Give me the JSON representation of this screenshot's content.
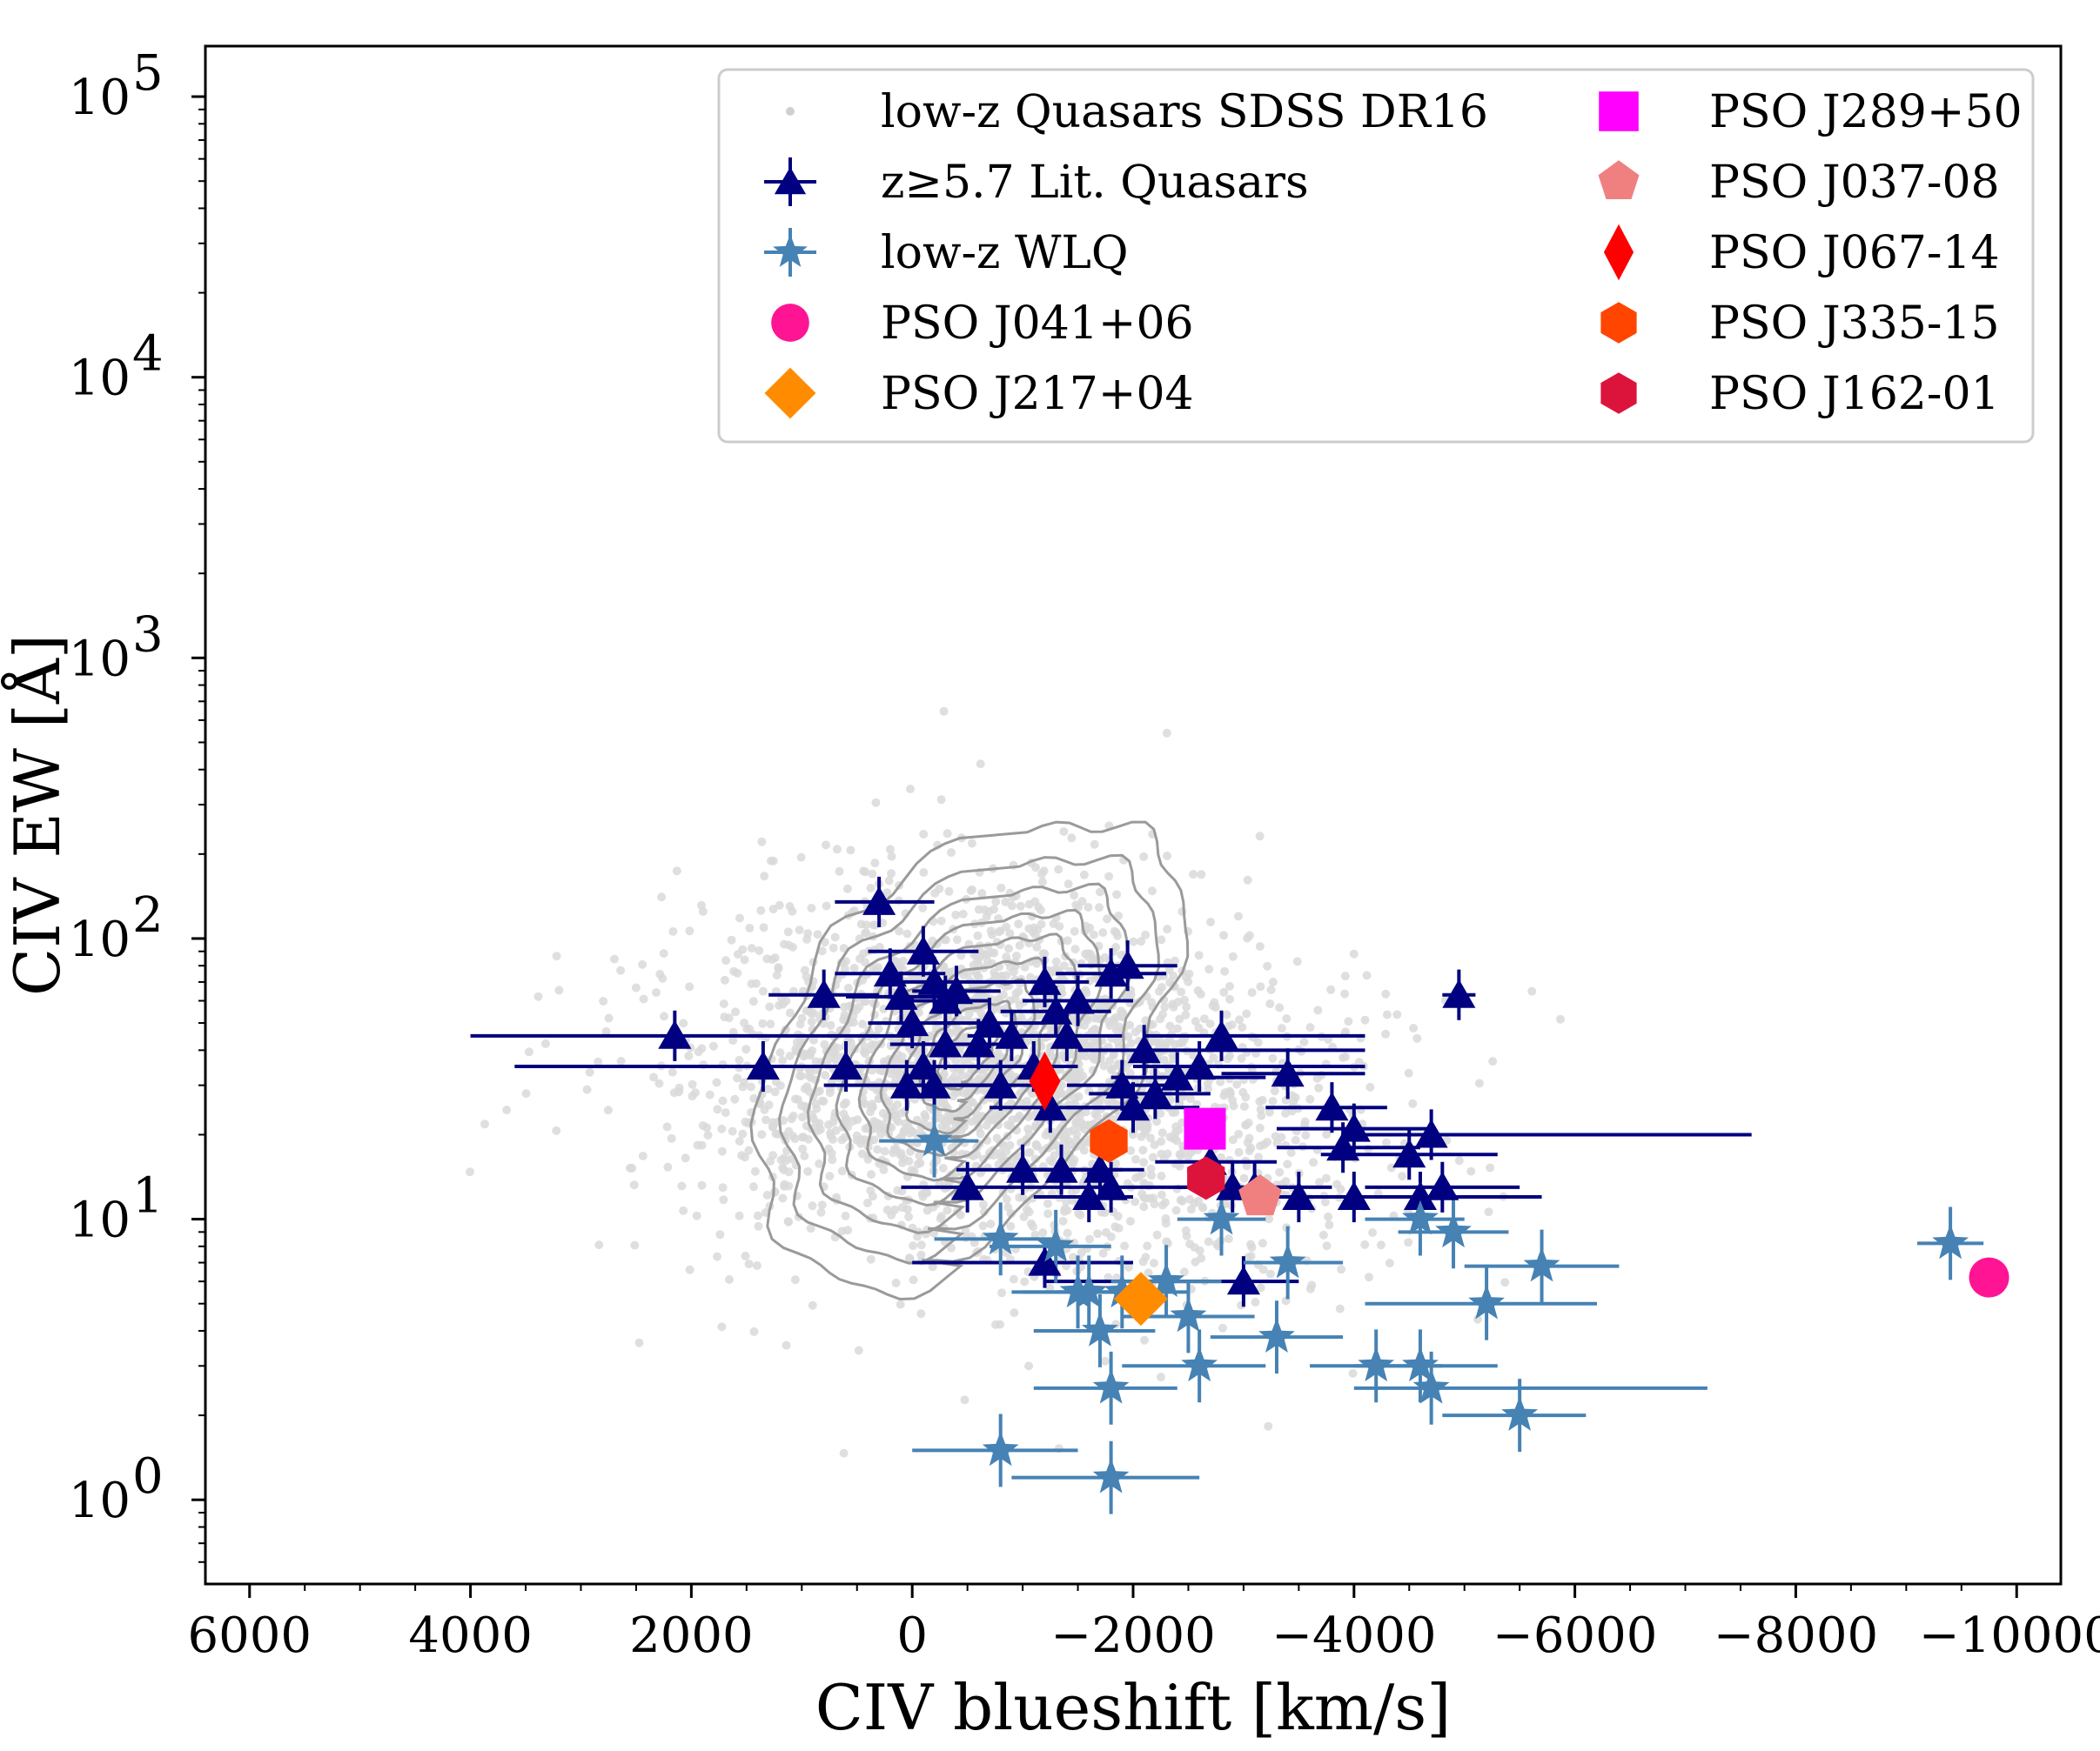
{
  "chart_data": {
    "type": "scatter",
    "title": "",
    "xlabel": "CIV blueshift [km/s]",
    "ylabel": "CIV EW [Å]",
    "xlim": [
      6400,
      -10400
    ],
    "ylim_log10": [
      -0.3,
      5.18
    ],
    "yscale": "log",
    "x_ticks": [
      6000,
      4000,
      2000,
      0,
      -2000,
      -4000,
      -6000,
      -8000,
      -10000
    ],
    "x_tick_labels": [
      "6000",
      "4000",
      "2000",
      "0",
      "−2000",
      "−4000",
      "−6000",
      "−8000",
      "−10000"
    ],
    "y_tick_exponents": [
      0,
      1,
      2,
      3,
      4,
      5
    ],
    "y_tick_base": "10",
    "legend_position": "upper-right",
    "colors": {
      "background_points": "#d9d9d9",
      "contour": "#9a9a9a",
      "lit_quasars": "#000080",
      "wlq": "#4682b4",
      "J041": "#ff1493",
      "J217": "#ff8c00",
      "J289": "#ff00ff",
      "J037": "#f08080",
      "J067": "#ff0000",
      "J335": "#ff4500",
      "J162": "#dc143c"
    },
    "legend": [
      {
        "label": "low-z Quasars SDSS DR16",
        "marker": "dot",
        "color": "#d0d0d0"
      },
      {
        "label": "z≥5.7 Lit. Quasars",
        "marker": "triangle",
        "color": "#000080"
      },
      {
        "label": "low-z WLQ",
        "marker": "star",
        "color": "#4682b4"
      },
      {
        "label": "PSO J041+06",
        "marker": "circle",
        "color": "#ff1493"
      },
      {
        "label": "PSO J217+04",
        "marker": "diamond",
        "color": "#ff8c00"
      },
      {
        "label": "PSO J289+50",
        "marker": "square",
        "color": "#ff00ff"
      },
      {
        "label": "PSO J037-08",
        "marker": "pentagon",
        "color": "#f08080"
      },
      {
        "label": "PSO J067-14",
        "marker": "thin-diamond",
        "color": "#ff0000"
      },
      {
        "label": "PSO J335-15",
        "marker": "hexagon",
        "color": "#ff4500"
      },
      {
        "label": "PSO J162-01",
        "marker": "hexagon",
        "color": "#dc143c"
      }
    ],
    "series": [
      {
        "name": "z≥5.7 Lit. Quasars",
        "marker": "triangle",
        "points": [
          {
            "x": 2150,
            "y": 45,
            "xlo": 4000,
            "xhi": 0
          },
          {
            "x": 1350,
            "y": 35,
            "xlo": 3600,
            "xhi": -800
          },
          {
            "x": 800,
            "y": 63,
            "xlo": 1300,
            "xhi": 300
          },
          {
            "x": 600,
            "y": 35,
            "xlo": 1000,
            "xhi": 100
          },
          {
            "x": 300,
            "y": 135,
            "xlo": 700,
            "xhi": -200
          },
          {
            "x": 200,
            "y": 75,
            "xlo": 700,
            "xhi": -300
          },
          {
            "x": 100,
            "y": 62,
            "xlo": 600,
            "xhi": -400
          },
          {
            "x": 0,
            "y": 50,
            "xlo": 400,
            "xhi": -400
          },
          {
            "x": -100,
            "y": 90,
            "xlo": 400,
            "xhi": -600
          },
          {
            "x": -200,
            "y": 70,
            "xlo": 200,
            "xhi": -700
          },
          {
            "x": -300,
            "y": 60,
            "xlo": 100,
            "xhi": -700
          },
          {
            "x": -400,
            "y": 65,
            "xlo": 0,
            "xhi": -800
          },
          {
            "x": -300,
            "y": 42,
            "xlo": 200,
            "xhi": -800
          },
          {
            "x": -100,
            "y": 35,
            "xlo": 400,
            "xhi": -600
          },
          {
            "x": 50,
            "y": 30,
            "xlo": 800,
            "xhi": -900
          },
          {
            "x": -200,
            "y": 30,
            "xlo": 200,
            "xhi": -700
          },
          {
            "x": -500,
            "y": 13,
            "xlo": 100,
            "xhi": -1200
          },
          {
            "x": -600,
            "y": 42,
            "xlo": -200,
            "xhi": -1000
          },
          {
            "x": -700,
            "y": 50,
            "xlo": -200,
            "xhi": -1200
          },
          {
            "x": -800,
            "y": 30,
            "xlo": -400,
            "xhi": -1300
          },
          {
            "x": -900,
            "y": 45,
            "xlo": -500,
            "xhi": -1300
          },
          {
            "x": -1000,
            "y": 15,
            "xlo": -400,
            "xhi": -1500
          },
          {
            "x": -1100,
            "y": 35,
            "xlo": -600,
            "xhi": -1500
          },
          {
            "x": -1200,
            "y": 70,
            "xlo": -700,
            "xhi": -1600
          },
          {
            "x": -1300,
            "y": 55,
            "xlo": -800,
            "xhi": -1800
          },
          {
            "x": -1400,
            "y": 45,
            "xlo": -900,
            "xhi": -1900
          },
          {
            "x": -1350,
            "y": 15,
            "xlo": -800,
            "xhi": -1900
          },
          {
            "x": -1250,
            "y": 25,
            "xlo": -700,
            "xhi": -1800
          },
          {
            "x": -1500,
            "y": 60,
            "xlo": -1000,
            "xhi": -2000
          },
          {
            "x": -1600,
            "y": 12,
            "xlo": -1100,
            "xhi": -2000
          },
          {
            "x": -1700,
            "y": 15,
            "xlo": -1000,
            "xhi": -2100
          },
          {
            "x": -1800,
            "y": 13,
            "xlo": -1200,
            "xhi": -2300
          },
          {
            "x": -1900,
            "y": 30,
            "xlo": -1400,
            "xhi": -2400
          },
          {
            "x": -1950,
            "y": 80,
            "xlo": -1500,
            "xhi": -2400
          },
          {
            "x": -1800,
            "y": 75,
            "xlo": -1300,
            "xhi": -2300
          },
          {
            "x": -2000,
            "y": 25,
            "xlo": -1400,
            "xhi": -2600
          },
          {
            "x": -2100,
            "y": 40,
            "xlo": -1500,
            "xhi": -4100
          },
          {
            "x": -2200,
            "y": 28,
            "xlo": -1600,
            "xhi": -2700
          },
          {
            "x": -2400,
            "y": 32,
            "xlo": -1800,
            "xhi": -3200
          },
          {
            "x": -2600,
            "y": 35,
            "xlo": -2000,
            "xhi": -4100
          },
          {
            "x": -2700,
            "y": 16,
            "xlo": -2200,
            "xhi": -3300
          },
          {
            "x": -2800,
            "y": 45,
            "xlo": -2100,
            "xhi": -4100
          },
          {
            "x": -2900,
            "y": 13,
            "xlo": -2300,
            "xhi": -3500
          },
          {
            "x": -3000,
            "y": 6,
            "xlo": -1200,
            "xhi": -3500
          },
          {
            "x": -3100,
            "y": 13,
            "xlo": -2400,
            "xhi": -3800
          },
          {
            "x": -3400,
            "y": 33,
            "xlo": -2800,
            "xhi": -4100
          },
          {
            "x": -3500,
            "y": 12,
            "xlo": -2800,
            "xhi": -4000
          },
          {
            "x": -3800,
            "y": 25,
            "xlo": -3200,
            "xhi": -4300
          },
          {
            "x": -3900,
            "y": 18,
            "xlo": -3300,
            "xhi": -4600
          },
          {
            "x": -4000,
            "y": 12,
            "xlo": -3400,
            "xhi": -4700
          },
          {
            "x": -4000,
            "y": 21,
            "xlo": -3300,
            "xhi": -4700
          },
          {
            "x": -4500,
            "y": 17,
            "xlo": -3700,
            "xhi": -5300
          },
          {
            "x": -4600,
            "y": 12,
            "xlo": -3700,
            "xhi": -5700
          },
          {
            "x": -4700,
            "y": 20,
            "xlo": -4000,
            "xhi": -7600
          },
          {
            "x": -4800,
            "y": 13,
            "xlo": -4100,
            "xhi": -5500
          },
          {
            "x": -4950,
            "y": 63,
            "xlo": -4800,
            "xhi": -5100
          },
          {
            "x": -1200,
            "y": 7,
            "xlo": 0,
            "xhi": -2000
          }
        ]
      },
      {
        "name": "low-z WLQ",
        "marker": "star",
        "points": [
          {
            "x": -200,
            "y": 19,
            "xlo": 300,
            "xhi": -600
          },
          {
            "x": -800,
            "y": 8.5,
            "xlo": -200,
            "xhi": -1300
          },
          {
            "x": -1300,
            "y": 8,
            "xlo": -700,
            "xhi": -1800
          },
          {
            "x": -1500,
            "y": 5.5,
            "xlo": -1000,
            "xhi": -2000
          },
          {
            "x": -1600,
            "y": 5.5,
            "xlo": -900,
            "xhi": -2300
          },
          {
            "x": -1700,
            "y": 4,
            "xlo": -1100,
            "xhi": -2200
          },
          {
            "x": -1900,
            "y": 5.5,
            "xlo": -1300,
            "xhi": -2500
          },
          {
            "x": -2300,
            "y": 6,
            "xlo": -1800,
            "xhi": -2800
          },
          {
            "x": -2500,
            "y": 4.5,
            "xlo": -1900,
            "xhi": -3100
          },
          {
            "x": -2600,
            "y": 3,
            "xlo": -1900,
            "xhi": -3200
          },
          {
            "x": -2800,
            "y": 10,
            "xlo": -2400,
            "xhi": -3200
          },
          {
            "x": -3300,
            "y": 3.8,
            "xlo": -2700,
            "xhi": -3900
          },
          {
            "x": -3400,
            "y": 7,
            "xlo": -3000,
            "xhi": -3900
          },
          {
            "x": -4200,
            "y": 3,
            "xlo": -3600,
            "xhi": -4800
          },
          {
            "x": -4600,
            "y": 10,
            "xlo": -4100,
            "xhi": -5000
          },
          {
            "x": -4600,
            "y": 3,
            "xlo": -4000,
            "xhi": -5300
          },
          {
            "x": -4700,
            "y": 2.5,
            "xlo": -4000,
            "xhi": -7200
          },
          {
            "x": -4900,
            "y": 9,
            "xlo": -4400,
            "xhi": -5400
          },
          {
            "x": -5200,
            "y": 5,
            "xlo": -4100,
            "xhi": -6200
          },
          {
            "x": -5500,
            "y": 2,
            "xlo": -4800,
            "xhi": -6100
          },
          {
            "x": -5700,
            "y": 6.8,
            "xlo": -5000,
            "xhi": -6400
          },
          {
            "x": -800,
            "y": 1.5,
            "xlo": 0,
            "xhi": -1500
          },
          {
            "x": -1800,
            "y": 1.2,
            "xlo": -900,
            "xhi": -2600
          },
          {
            "x": -1800,
            "y": 2.5,
            "xlo": -1100,
            "xhi": -2400
          },
          {
            "x": -9400,
            "y": 8.2,
            "xlo": -9100,
            "xhi": -9700
          }
        ]
      },
      {
        "name": "PSO J041+06",
        "marker": "circle",
        "points": [
          {
            "x": -9750,
            "y": 6.2
          }
        ]
      },
      {
        "name": "PSO J217+04",
        "marker": "diamond",
        "points": [
          {
            "x": -2070,
            "y": 5.2
          }
        ]
      },
      {
        "name": "PSO J289+50",
        "marker": "square",
        "points": [
          {
            "x": -2650,
            "y": 21
          }
        ]
      },
      {
        "name": "PSO J037-08",
        "marker": "pentagon",
        "points": [
          {
            "x": -3150,
            "y": 12
          }
        ]
      },
      {
        "name": "PSO J067-14",
        "marker": "thin-diamond",
        "points": [
          {
            "x": -1200,
            "y": 31
          }
        ]
      },
      {
        "name": "PSO J335-15",
        "marker": "hexagon",
        "points": [
          {
            "x": -1780,
            "y": 19
          }
        ]
      },
      {
        "name": "PSO J162-01",
        "marker": "hexagon",
        "points": [
          {
            "x": -2660,
            "y": 14
          }
        ]
      }
    ]
  }
}
